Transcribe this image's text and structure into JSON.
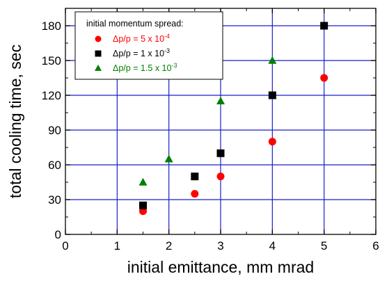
{
  "chart_data": {
    "type": "scatter",
    "xlabel": "initial emittance, mm mrad",
    "ylabel": "total cooling time, sec",
    "xlim": [
      0,
      6
    ],
    "ylim": [
      0,
      195
    ],
    "x_ticks": [
      "0",
      "1",
      "2",
      "3",
      "4",
      "5",
      "6"
    ],
    "y_ticks": [
      "0",
      "30",
      "60",
      "90",
      "120",
      "150",
      "180"
    ],
    "grid": true,
    "grid_color": "#1c1ccc",
    "legend_position": "top-left",
    "legend": {
      "title": "initial momentum spread:",
      "entries": [
        {
          "prefix": "Δp/p = 5 x 10",
          "exp": "-4",
          "color": "#ff0000",
          "marker": "circle"
        },
        {
          "prefix": "Δp/p = 1 x 10",
          "exp": "-3",
          "color": "#000000",
          "marker": "square"
        },
        {
          "prefix": "Δp/p = 1.5 x 10",
          "exp": "-3",
          "color": "#008000",
          "marker": "triangle"
        }
      ]
    },
    "series": [
      {
        "color": "#ff0000",
        "marker": "circle",
        "x": [
          1.5,
          2.5,
          3.0,
          4.0,
          5.0
        ],
        "y": [
          20,
          35,
          50,
          80,
          135
        ]
      },
      {
        "color": "#000000",
        "marker": "square",
        "x": [
          1.5,
          2.5,
          3.0,
          4.0,
          5.0
        ],
        "y": [
          25,
          50,
          70,
          120,
          180
        ]
      },
      {
        "color": "#008000",
        "marker": "triangle",
        "x": [
          1.5,
          2.0,
          3.0,
          4.0
        ],
        "y": [
          45,
          65,
          115,
          150
        ]
      }
    ]
  }
}
